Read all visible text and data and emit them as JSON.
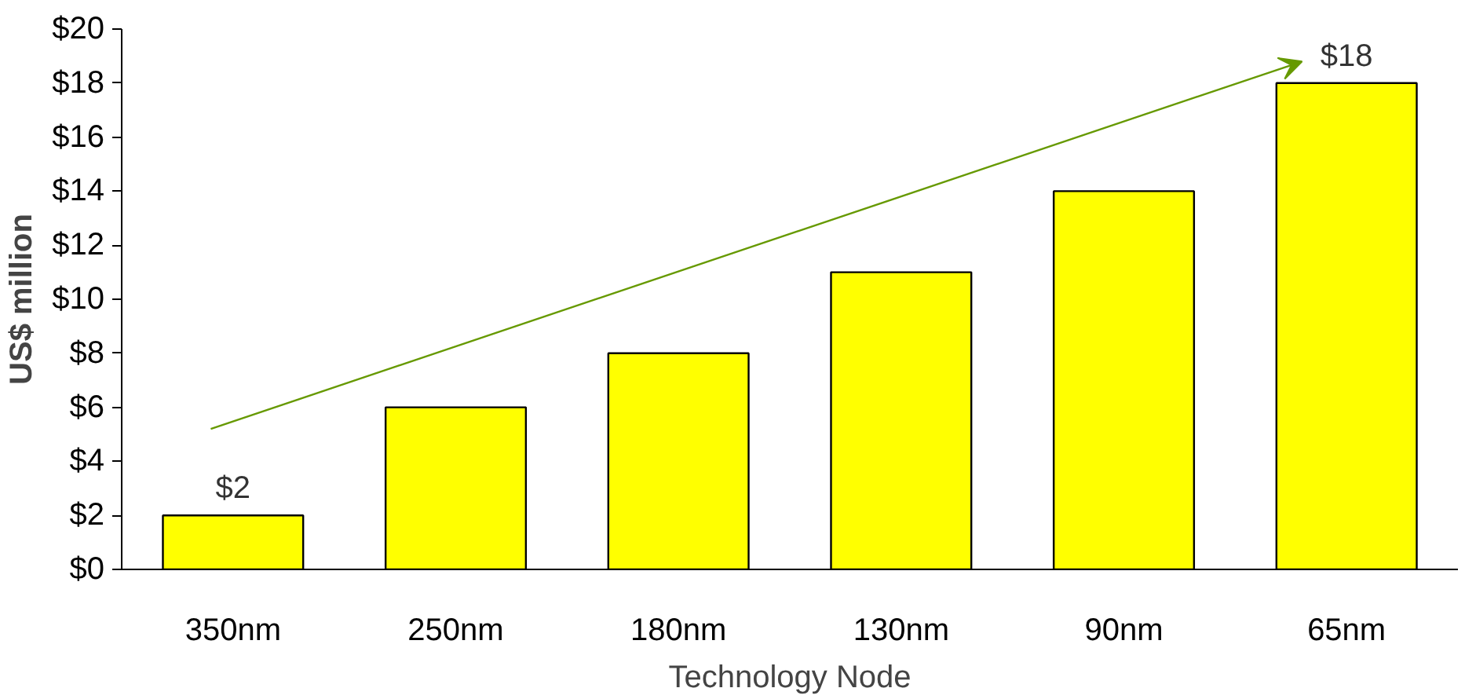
{
  "chart_data": {
    "type": "bar",
    "xlabel": "Technology Node",
    "ylabel": "US$ million",
    "categories": [
      "350nm",
      "250nm",
      "180nm",
      "130nm",
      "90nm",
      "65nm"
    ],
    "values": [
      2,
      6,
      8,
      11,
      14,
      18
    ],
    "value_labels": [
      "$2",
      null,
      null,
      null,
      null,
      "$18"
    ],
    "color": "#ffff00",
    "ylim": [
      0,
      20
    ],
    "yticks": [
      {
        "value": 0,
        "label": "$0"
      },
      {
        "value": 2,
        "label": "$2"
      },
      {
        "value": 4,
        "label": "$4"
      },
      {
        "value": 6,
        "label": "$6"
      },
      {
        "value": 8,
        "label": "$8"
      },
      {
        "value": 10,
        "label": "$10"
      },
      {
        "value": 12,
        "label": "$12"
      },
      {
        "value": 14,
        "label": "$14"
      },
      {
        "value": 16,
        "label": "$16"
      },
      {
        "value": 18,
        "label": "$18"
      },
      {
        "value": 20,
        "label": "$20"
      }
    ],
    "grid": false
  }
}
